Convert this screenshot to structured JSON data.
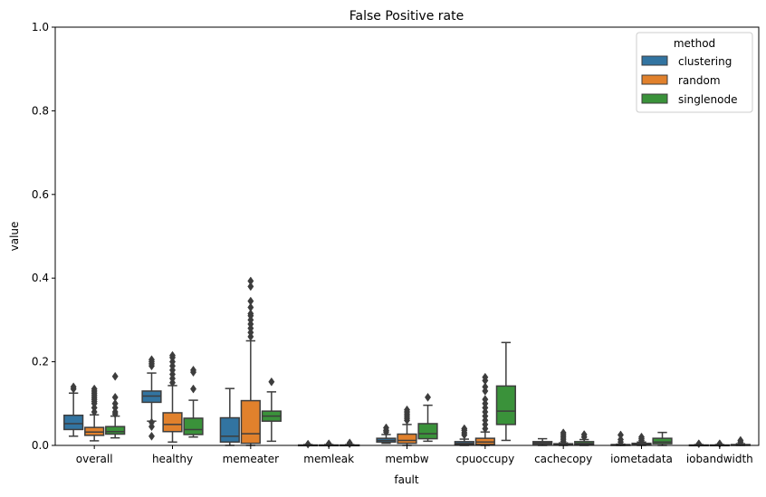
{
  "chart_data": {
    "type": "box",
    "title": "False Positive rate",
    "xlabel": "fault",
    "ylabel": "value",
    "ylim": [
      0,
      1
    ],
    "yticks": [
      0.0,
      0.2,
      0.4,
      0.6,
      0.8,
      1.0
    ],
    "ytick_labels": [
      "0.0",
      "0.2",
      "0.4",
      "0.6",
      "0.8",
      "1.0"
    ],
    "grid": false,
    "legend": {
      "title": "method",
      "position": "top-right"
    },
    "categories": [
      "overall",
      "healthy",
      "memeater",
      "memleak",
      "membw",
      "cpuoccupy",
      "cachecopy",
      "iometadata",
      "iobandwidth"
    ],
    "series": [
      {
        "name": "clustering",
        "color": "#3274a1",
        "boxes": [
          {
            "whislo": 0.022,
            "q1": 0.038,
            "med": 0.052,
            "q3": 0.072,
            "whishi": 0.125,
            "fliers": [
              0.135,
              0.14
            ]
          },
          {
            "whislo": 0.058,
            "q1": 0.103,
            "med": 0.118,
            "q3": 0.13,
            "whishi": 0.173,
            "fliers": [
              0.022,
              0.045,
              0.055,
              0.19,
              0.195,
              0.2,
              0.205
            ]
          },
          {
            "whislo": 0.0,
            "q1": 0.008,
            "med": 0.022,
            "q3": 0.066,
            "whishi": 0.136,
            "fliers": []
          },
          {
            "whislo": 0.0,
            "q1": 0.0,
            "med": 0.0,
            "q3": 0.001,
            "whishi": 0.002,
            "fliers": [
              0.003
            ]
          },
          {
            "whislo": 0.005,
            "q1": 0.008,
            "med": 0.012,
            "q3": 0.017,
            "whishi": 0.026,
            "fliers": [
              0.032,
              0.036,
              0.042
            ]
          },
          {
            "whislo": 0.0,
            "q1": 0.002,
            "med": 0.005,
            "q3": 0.009,
            "whishi": 0.015,
            "fliers": [
              0.025,
              0.03,
              0.036,
              0.04
            ]
          },
          {
            "whislo": 0.0,
            "q1": 0.003,
            "med": 0.006,
            "q3": 0.009,
            "whishi": 0.016,
            "fliers": []
          },
          {
            "whislo": 0.0,
            "q1": 0.0,
            "med": 0.001,
            "q3": 0.002,
            "whishi": 0.003,
            "fliers": [
              0.008,
              0.014,
              0.025
            ]
          },
          {
            "whislo": 0.0,
            "q1": 0.0,
            "med": 0.0,
            "q3": 0.001,
            "whishi": 0.002,
            "fliers": [
              0.004
            ]
          }
        ]
      },
      {
        "name": "random",
        "color": "#e1812c",
        "boxes": [
          {
            "whislo": 0.011,
            "q1": 0.024,
            "med": 0.032,
            "q3": 0.043,
            "whishi": 0.073,
            "fliers": [
              0.08,
              0.09,
              0.1,
              0.105,
              0.11,
              0.115,
              0.12,
              0.125,
              0.13,
              0.135
            ]
          },
          {
            "whislo": 0.008,
            "q1": 0.033,
            "med": 0.05,
            "q3": 0.078,
            "whishi": 0.143,
            "fliers": [
              0.15,
              0.16,
              0.17,
              0.18,
              0.19,
              0.2,
              0.21,
              0.215
            ]
          },
          {
            "whislo": 0.0,
            "q1": 0.005,
            "med": 0.028,
            "q3": 0.107,
            "whishi": 0.25,
            "fliers": [
              0.26,
              0.27,
              0.28,
              0.29,
              0.3,
              0.31,
              0.315,
              0.33,
              0.345,
              0.38,
              0.393
            ]
          },
          {
            "whislo": 0.0,
            "q1": 0.0,
            "med": 0.0,
            "q3": 0.001,
            "whishi": 0.002,
            "fliers": [
              0.004
            ]
          },
          {
            "whislo": 0.0,
            "q1": 0.005,
            "med": 0.012,
            "q3": 0.027,
            "whishi": 0.05,
            "fliers": [
              0.06,
              0.065,
              0.07,
              0.075,
              0.08,
              0.085
            ]
          },
          {
            "whislo": 0.0,
            "q1": 0.002,
            "med": 0.008,
            "q3": 0.017,
            "whishi": 0.032,
            "fliers": [
              0.04,
              0.05,
              0.06,
              0.07,
              0.08,
              0.09,
              0.1,
              0.11,
              0.13,
              0.14,
              0.155,
              0.163
            ]
          },
          {
            "whislo": 0.0,
            "q1": 0.001,
            "med": 0.002,
            "q3": 0.004,
            "whishi": 0.006,
            "fliers": [
              0.01,
              0.015,
              0.02,
              0.025,
              0.03
            ]
          },
          {
            "whislo": 0.0,
            "q1": 0.001,
            "med": 0.003,
            "q3": 0.005,
            "whishi": 0.008,
            "fliers": [
              0.012,
              0.016,
              0.02
            ]
          },
          {
            "whislo": 0.0,
            "q1": 0.0,
            "med": 0.0,
            "q3": 0.001,
            "whishi": 0.002,
            "fliers": [
              0.004
            ]
          }
        ]
      },
      {
        "name": "singlenode",
        "color": "#3a923a",
        "boxes": [
          {
            "whislo": 0.018,
            "q1": 0.027,
            "med": 0.033,
            "q3": 0.045,
            "whishi": 0.07,
            "fliers": [
              0.075,
              0.08,
              0.09,
              0.1,
              0.115,
              0.165
            ]
          },
          {
            "whislo": 0.02,
            "q1": 0.026,
            "med": 0.038,
            "q3": 0.065,
            "whishi": 0.108,
            "fliers": [
              0.135,
              0.175,
              0.18
            ]
          },
          {
            "whislo": 0.01,
            "q1": 0.058,
            "med": 0.07,
            "q3": 0.082,
            "whishi": 0.128,
            "fliers": [
              0.152
            ]
          },
          {
            "whislo": 0.0,
            "q1": 0.0,
            "med": 0.0,
            "q3": 0.001,
            "whishi": 0.002,
            "fliers": [
              0.004,
              0.006
            ]
          },
          {
            "whislo": 0.01,
            "q1": 0.016,
            "med": 0.028,
            "q3": 0.052,
            "whishi": 0.096,
            "fliers": [
              0.115
            ]
          },
          {
            "whislo": 0.012,
            "q1": 0.05,
            "med": 0.082,
            "q3": 0.142,
            "whishi": 0.246,
            "fliers": []
          },
          {
            "whislo": 0.0,
            "q1": 0.002,
            "med": 0.005,
            "q3": 0.009,
            "whishi": 0.014,
            "fliers": [
              0.02,
              0.026
            ]
          },
          {
            "whislo": 0.0,
            "q1": 0.004,
            "med": 0.008,
            "q3": 0.017,
            "whishi": 0.031,
            "fliers": []
          },
          {
            "whislo": 0.0,
            "q1": 0.0,
            "med": 0.001,
            "q3": 0.002,
            "whishi": 0.004,
            "fliers": [
              0.008,
              0.012
            ]
          }
        ]
      }
    ]
  }
}
